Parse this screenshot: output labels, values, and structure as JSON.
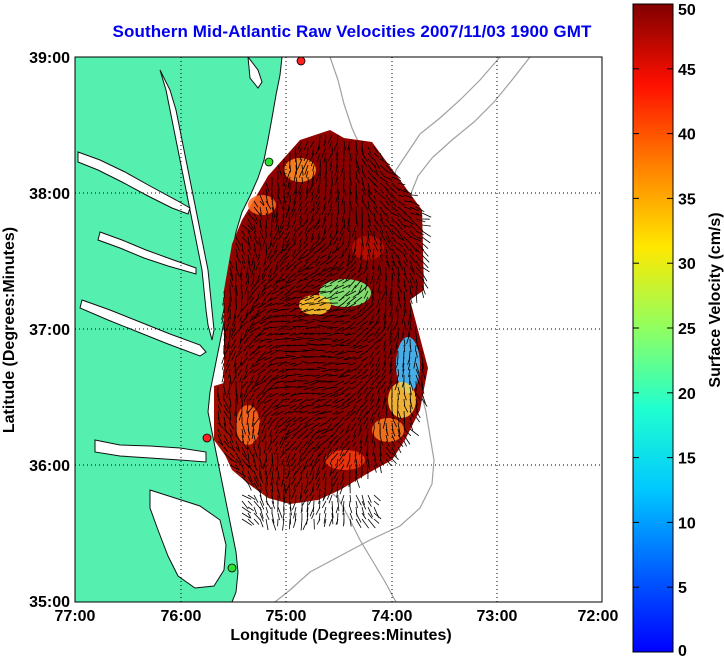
{
  "title": "Southern Mid-Atlantic Raw Velocities 2007/11/03 1900 GMT",
  "axes": {
    "xlabel": "Longitude (Degrees:Minutes)",
    "ylabel": "Latitude (Degrees:Minutes)",
    "x_ticks": [
      "77:00",
      "76:00",
      "75:00",
      "74:00",
      "73:00",
      "72:00"
    ],
    "y_ticks": [
      "39:00",
      "38:00",
      "37:00",
      "36:00",
      "35:00"
    ],
    "xlim_deg": [
      -77,
      -72
    ],
    "ylim_deg": [
      35,
      39
    ],
    "grid": "dotted"
  },
  "colorbar": {
    "label": "Surface Velocity (cm/s)",
    "ticks": [
      "0",
      "5",
      "10",
      "15",
      "20",
      "25",
      "30",
      "35",
      "40",
      "45",
      "50"
    ],
    "range": [
      0,
      50
    ],
    "colormap": "jet"
  },
  "colors": {
    "land": "#55f0b0",
    "title": "#0000ee",
    "ocean": "#ffffff",
    "bathymetry": "#a0a0a0"
  },
  "stations": [
    {
      "color": "#ff2020"
    },
    {
      "color": "#30e030"
    },
    {
      "color": "#ff2020"
    },
    {
      "color": "#30e030"
    }
  ]
}
